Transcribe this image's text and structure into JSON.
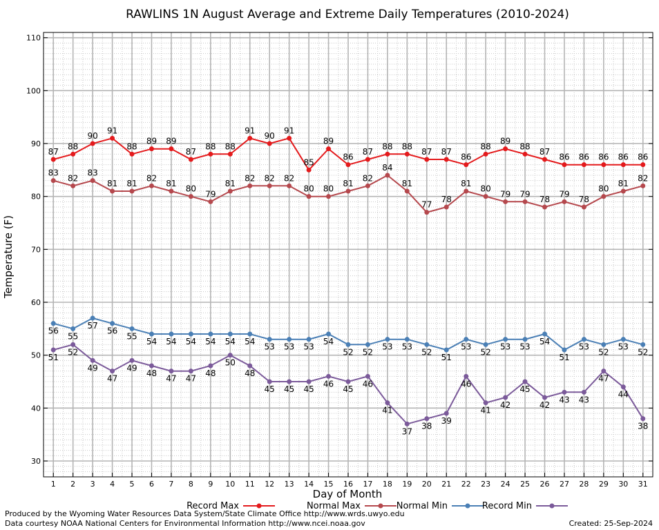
{
  "chart_data": {
    "type": "line",
    "title": "RAWLINS 1N August Average and Extreme Daily Temperatures (2010-2024)",
    "xlabel": "Day of Month",
    "ylabel": "Temperature (F)",
    "x": [
      1,
      2,
      3,
      4,
      5,
      6,
      7,
      8,
      9,
      10,
      11,
      12,
      13,
      14,
      15,
      16,
      17,
      18,
      19,
      20,
      21,
      22,
      23,
      24,
      25,
      26,
      27,
      28,
      29,
      30,
      31
    ],
    "xlim": [
      0.5,
      31.5
    ],
    "ylim": [
      27,
      111
    ],
    "yticks": [
      30,
      40,
      50,
      60,
      70,
      80,
      90,
      100,
      110
    ],
    "grid": true,
    "legend_position": "bottom",
    "series": [
      {
        "name": "Record Max",
        "color": "#e41a1c",
        "values": [
          87,
          88,
          90,
          91,
          88,
          89,
          89,
          87,
          88,
          88,
          91,
          90,
          91,
          85,
          89,
          86,
          87,
          88,
          88,
          87,
          87,
          86,
          88,
          89,
          88,
          87,
          86,
          86,
          86,
          86,
          86
        ]
      },
      {
        "name": "Normal Max",
        "color": "#b5484d",
        "values": [
          83,
          82,
          83,
          81,
          81,
          82,
          81,
          80,
          79,
          81,
          82,
          82,
          82,
          80,
          80,
          81,
          82,
          84,
          81,
          77,
          78,
          81,
          80,
          79,
          79,
          78,
          79,
          78,
          80,
          81,
          82
        ]
      },
      {
        "name": "Normal Min",
        "color": "#4a7fb5",
        "values": [
          56,
          55,
          57,
          56,
          55,
          54,
          54,
          54,
          54,
          54,
          54,
          53,
          53,
          53,
          54,
          52,
          52,
          53,
          53,
          52,
          51,
          53,
          52,
          53,
          53,
          54,
          51,
          53,
          52,
          53,
          52
        ]
      },
      {
        "name": "Record Min",
        "color": "#7b5a9a",
        "values": [
          51,
          52,
          49,
          47,
          49,
          48,
          47,
          47,
          48,
          50,
          48,
          45,
          45,
          45,
          46,
          45,
          46,
          41,
          37,
          38,
          39,
          46,
          41,
          42,
          45,
          42,
          43,
          43,
          47,
          44,
          38
        ]
      }
    ]
  },
  "footer": {
    "produced_by": "Produced by the Wyoming Water Resources Data System/State Climate Office http://www.wrds.uwyo.edu",
    "data_courtesy": "Data courtesy NOAA National Centers for Environmental Information http://www.ncei.noaa.gov",
    "created": "Created:  25-Sep-2024"
  }
}
